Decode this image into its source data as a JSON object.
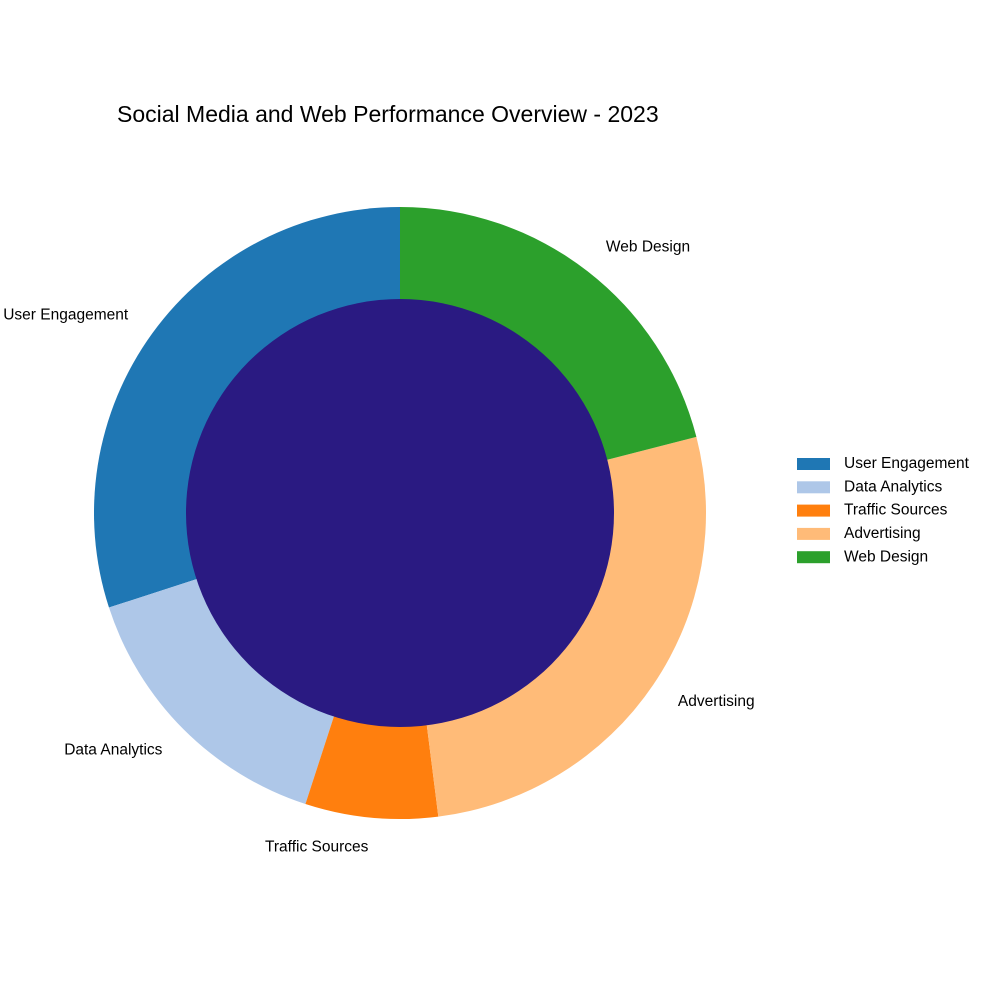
{
  "chart_data": {
    "type": "pie",
    "variant": "donut",
    "title": "Social Media and Web Performance Overview - 2023",
    "categories": [
      "User Engagement",
      "Data Analytics",
      "Traffic Sources",
      "Advertising",
      "Web Design"
    ],
    "values": [
      30,
      15,
      7,
      27,
      21
    ],
    "unit_hint": "percent of total (estimated)",
    "colors": [
      "#1f77b4",
      "#aec7e8",
      "#ff7f0e",
      "#ffbb78",
      "#2ca02c"
    ],
    "center_color": "#2a1a82",
    "start_angle_deg": 90,
    "direction": "counterclockwise",
    "legend_position": "right",
    "grid": false
  }
}
